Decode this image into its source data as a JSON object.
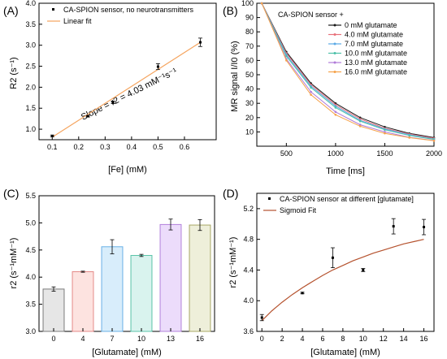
{
  "chart_data": [
    {
      "panel": "(A)",
      "type": "scatter",
      "xlabel": "[Fe] (mM)",
      "ylabel": "R2 (s⁻¹)",
      "xlim": [
        0.05,
        0.72
      ],
      "ylim": [
        0.75,
        4.0
      ],
      "xticks": [
        "0.1",
        "0.2",
        "0.3",
        "0.4",
        "0.5",
        "0.6"
      ],
      "yticks": [
        "1.0",
        "1.5",
        "2.0",
        "2.5",
        "3.0",
        "3.5",
        "4.0"
      ],
      "annotation": "Slope = r2 = 4.03 mM⁻¹s⁻¹",
      "series": [
        {
          "name": "CA-SPION sensor, no neurotransmitters",
          "kind": "points",
          "x": [
            0.1,
            0.235,
            0.33,
            0.5,
            0.66
          ],
          "y": [
            0.84,
            1.31,
            1.64,
            2.49,
            3.07
          ],
          "err": [
            0.02,
            0.02,
            0.03,
            0.07,
            0.1
          ],
          "color": "#000000"
        },
        {
          "name": "Linear fit",
          "kind": "line",
          "x": [
            0.1,
            0.66
          ],
          "y": [
            0.81,
            3.07
          ],
          "color": "#f5a45e"
        }
      ]
    },
    {
      "panel": "(B)",
      "type": "line",
      "xlabel": "Time [ms]",
      "ylabel": "MR signal I/I0 (%)",
      "xlim": [
        200,
        2000
      ],
      "ylim": [
        0,
        100
      ],
      "xticks": [
        "500",
        "1000",
        "1500",
        "2000"
      ],
      "yticks": [
        "10",
        "20",
        "30",
        "40",
        "50",
        "60",
        "70",
        "80",
        "90",
        "100"
      ],
      "legend_title": "CA-SPION sensor +",
      "x": [
        250,
        500,
        750,
        1000,
        1250,
        1500,
        1750,
        2000
      ],
      "series": [
        {
          "name": "0 mM glutamate",
          "color": "#1a1a1a",
          "values": [
            100,
            66,
            44,
            30,
            20,
            13.5,
            9,
            6
          ]
        },
        {
          "name": "4.0 mM glutamate",
          "color": "#e8707a",
          "values": [
            100,
            65,
            43,
            29,
            19,
            12.5,
            8.5,
            5.5
          ]
        },
        {
          "name": "7.0 mM glutamate",
          "color": "#5aa9e6",
          "values": [
            100,
            64,
            42,
            28,
            18,
            12,
            8,
            5
          ]
        },
        {
          "name": "10.0 mM glutamate",
          "color": "#4cc0a8",
          "values": [
            100,
            63,
            41,
            27,
            17.5,
            11.5,
            7.5,
            4.8
          ]
        },
        {
          "name": "13.0 mM glutamate",
          "color": "#b07ad8",
          "values": [
            100,
            61,
            38,
            24,
            15,
            10,
            6.2,
            4
          ]
        },
        {
          "name": "16.0 mM glutamate",
          "color": "#f5a24a",
          "values": [
            100,
            60,
            36,
            22,
            14,
            9,
            6,
            3.8
          ]
        }
      ]
    },
    {
      "panel": "(C)",
      "type": "bar",
      "xlabel": "[Glutamate] (mM)",
      "ylabel": "r2 (s⁻¹mM⁻¹)",
      "ylim": [
        3.0,
        5.5
      ],
      "yticks": [
        "3.0",
        "3.5",
        "4.0",
        "4.5",
        "5.0",
        "5.5"
      ],
      "categories": [
        "0",
        "4",
        "7",
        "10",
        "13",
        "16"
      ],
      "values": [
        3.78,
        4.1,
        4.56,
        4.4,
        4.97,
        4.96
      ],
      "err": [
        0.04,
        0.01,
        0.13,
        0.02,
        0.1,
        0.1
      ],
      "fills": [
        "#e6e6e6",
        "#fde3e0",
        "#d8edfb",
        "#d9f3ee",
        "#ecdcfb",
        "#eeefda"
      ],
      "strokes": [
        "#7a7a7a",
        "#e58a88",
        "#69b1e6",
        "#59c3a9",
        "#b282db",
        "#a8a866"
      ]
    },
    {
      "panel": "(D)",
      "type": "scatter",
      "xlabel": "[Glutamate] (mM)",
      "ylabel": "r2 (s⁻¹mM⁻¹)",
      "xlim": [
        -0.5,
        17
      ],
      "ylim": [
        3.6,
        5.4
      ],
      "xticks": [
        "0",
        "2",
        "4",
        "6",
        "8",
        "10",
        "12",
        "14",
        "16"
      ],
      "yticks": [
        "3.6",
        "4.0",
        "4.4",
        "4.8",
        "5.2"
      ],
      "series": [
        {
          "name": "CA-SPION sensor at different [glutamate]",
          "kind": "points",
          "x": [
            0,
            4,
            7,
            10,
            13,
            16
          ],
          "y": [
            3.78,
            4.1,
            4.56,
            4.4,
            4.97,
            4.96
          ],
          "err": [
            0.04,
            0.01,
            0.13,
            0.02,
            0.1,
            0.1
          ],
          "color": "#000000"
        },
        {
          "name": "Sigmoid Fit",
          "kind": "line",
          "x": [
            0,
            1,
            2,
            3,
            4,
            5,
            6,
            7,
            8,
            9,
            10,
            11,
            12,
            13,
            14,
            15,
            16
          ],
          "y": [
            3.74,
            3.87,
            3.98,
            4.08,
            4.17,
            4.25,
            4.33,
            4.4,
            4.46,
            4.52,
            4.57,
            4.62,
            4.66,
            4.7,
            4.74,
            4.77,
            4.8
          ],
          "color": "#b5522e"
        }
      ]
    }
  ]
}
